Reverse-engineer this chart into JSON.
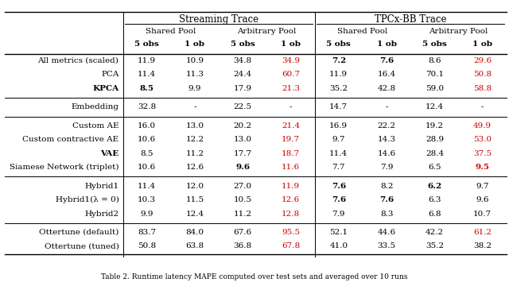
{
  "figsize": [
    6.4,
    3.65
  ],
  "dpi": 100,
  "font_size": 7.5,
  "header_font_size": 8.5,
  "bg_color": "#ffffff",
  "text_color": "#000000",
  "red_color": "#cc0000",
  "line_color": "#000000",
  "caption_text": "Table 2. Runtime latency MAPE computed over test sets and averaged over 10 runs",
  "groups": [
    {
      "rows": [
        [
          "All metrics (scaled)",
          "11.9",
          "10.9",
          "34.8",
          "34.9",
          "7.2",
          "7.6",
          "8.6",
          "29.6"
        ],
        [
          "PCA",
          "11.4",
          "11.3",
          "24.4",
          "60.7",
          "11.9",
          "16.4",
          "70.1",
          "50.8"
        ],
        [
          "KPCA",
          "8.5",
          "9.9",
          "17.9",
          "21.3",
          "35.2",
          "42.8",
          "59.0",
          "58.8"
        ]
      ],
      "bold": [
        [
          false,
          false,
          false,
          false,
          false,
          true,
          true,
          false,
          false
        ],
        [
          false,
          false,
          false,
          false,
          false,
          false,
          false,
          false,
          false
        ],
        [
          true,
          true,
          false,
          false,
          false,
          false,
          false,
          false,
          false
        ]
      ],
      "red": [
        [
          false,
          false,
          false,
          false,
          true,
          false,
          false,
          false,
          true
        ],
        [
          false,
          false,
          false,
          false,
          true,
          false,
          false,
          false,
          true
        ],
        [
          false,
          false,
          false,
          false,
          true,
          false,
          false,
          false,
          true
        ]
      ]
    },
    {
      "rows": [
        [
          "Embedding",
          "32.8",
          "-",
          "22.5",
          "-",
          "14.7",
          "-",
          "12.4",
          "-"
        ]
      ],
      "bold": [
        [
          false,
          false,
          false,
          false,
          false,
          false,
          false,
          false,
          false
        ]
      ],
      "red": [
        [
          false,
          false,
          false,
          false,
          false,
          false,
          false,
          false,
          false
        ]
      ]
    },
    {
      "rows": [
        [
          "Custom AE",
          "16.0",
          "13.0",
          "20.2",
          "21.4",
          "16.9",
          "22.2",
          "19.2",
          "49.9"
        ],
        [
          "Custom contractive AE",
          "10.6",
          "12.2",
          "13.0",
          "19.7",
          "9.7",
          "14.3",
          "28.9",
          "53.0"
        ],
        [
          "VAE",
          "8.5",
          "11.2",
          "17.7",
          "18.7",
          "11.4",
          "14.6",
          "28.4",
          "37.5"
        ],
        [
          "Siamese Network (triplet)",
          "10.6",
          "12.6",
          "9.6",
          "11.6",
          "7.7",
          "7.9",
          "6.5",
          "9.5"
        ]
      ],
      "bold": [
        [
          false,
          false,
          false,
          false,
          false,
          false,
          false,
          false,
          false
        ],
        [
          false,
          false,
          false,
          false,
          false,
          false,
          false,
          false,
          false
        ],
        [
          true,
          false,
          false,
          false,
          false,
          false,
          false,
          false,
          false
        ],
        [
          false,
          false,
          false,
          true,
          false,
          false,
          false,
          false,
          true
        ]
      ],
      "red": [
        [
          false,
          false,
          false,
          false,
          true,
          false,
          false,
          false,
          true
        ],
        [
          false,
          false,
          false,
          false,
          true,
          false,
          false,
          false,
          true
        ],
        [
          false,
          false,
          false,
          false,
          true,
          false,
          false,
          false,
          true
        ],
        [
          false,
          false,
          false,
          false,
          true,
          false,
          false,
          false,
          true
        ]
      ]
    },
    {
      "rows": [
        [
          "Hybrid1",
          "11.4",
          "12.0",
          "27.0",
          "11.9",
          "7.6",
          "8.2",
          "6.2",
          "9.7"
        ],
        [
          "Hybrid1(λ = 0)",
          "10.3",
          "11.5",
          "10.5",
          "12.6",
          "7.6",
          "7.6",
          "6.3",
          "9.6"
        ],
        [
          "Hybrid2",
          "9.9",
          "12.4",
          "11.2",
          "12.8",
          "7.9",
          "8.3",
          "6.8",
          "10.7"
        ]
      ],
      "bold": [
        [
          false,
          false,
          false,
          false,
          false,
          true,
          false,
          true,
          false
        ],
        [
          false,
          false,
          false,
          false,
          false,
          true,
          true,
          false,
          false
        ],
        [
          false,
          false,
          false,
          false,
          false,
          false,
          false,
          false,
          false
        ]
      ],
      "red": [
        [
          false,
          false,
          false,
          false,
          true,
          false,
          false,
          false,
          false
        ],
        [
          false,
          false,
          false,
          false,
          true,
          false,
          false,
          false,
          false
        ],
        [
          false,
          false,
          false,
          false,
          true,
          false,
          false,
          false,
          false
        ]
      ]
    },
    {
      "rows": [
        [
          "Ottertune (default)",
          "83.7",
          "84.0",
          "67.6",
          "95.5",
          "52.1",
          "44.6",
          "42.2",
          "61.2"
        ],
        [
          "Ottertune (tuned)",
          "50.8",
          "63.8",
          "36.8",
          "67.8",
          "41.0",
          "33.5",
          "35.2",
          "38.2"
        ]
      ],
      "bold": [
        [
          false,
          false,
          false,
          false,
          false,
          false,
          false,
          false,
          false
        ],
        [
          false,
          false,
          false,
          false,
          false,
          false,
          false,
          false,
          false
        ]
      ],
      "red": [
        [
          false,
          false,
          false,
          false,
          true,
          false,
          false,
          false,
          true
        ],
        [
          false,
          false,
          false,
          false,
          true,
          false,
          false,
          false,
          false
        ]
      ]
    }
  ]
}
